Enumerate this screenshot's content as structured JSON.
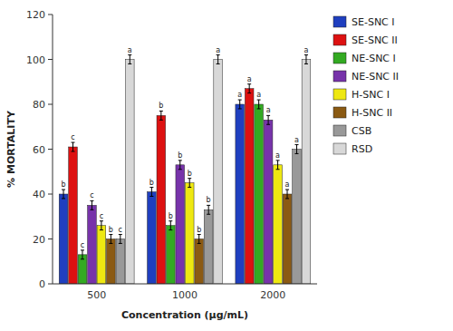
{
  "chart_data": {
    "type": "bar",
    "xlabel": "Concentration (μg/mL)",
    "ylabel": "% MORTALITY",
    "categories": [
      "500",
      "1000",
      "2000"
    ],
    "series": [
      {
        "name": "SE-SNC I",
        "color": "#1F3FBF",
        "values": [
          40,
          41,
          80
        ],
        "errors": [
          2,
          2,
          2
        ],
        "annotations": [
          "b",
          "b",
          "a"
        ]
      },
      {
        "name": "SE-SNC II",
        "color": "#DD1111",
        "values": [
          61,
          75,
          87
        ],
        "errors": [
          2,
          2,
          2
        ],
        "annotations": [
          "c",
          "b",
          "a"
        ]
      },
      {
        "name": "NE-SNC I",
        "color": "#33AA22",
        "values": [
          13,
          26,
          80
        ],
        "errors": [
          2,
          2,
          2
        ],
        "annotations": [
          "c",
          "b",
          "a"
        ]
      },
      {
        "name": "NE-SNC II",
        "color": "#7733AA",
        "values": [
          35,
          53,
          73
        ],
        "errors": [
          2,
          2,
          2
        ],
        "annotations": [
          "c",
          "b",
          "a"
        ]
      },
      {
        "name": "H-SNC I",
        "color": "#EEE811",
        "values": [
          26,
          45,
          53
        ],
        "errors": [
          2,
          2,
          2
        ],
        "annotations": [
          "c",
          "b",
          "a"
        ]
      },
      {
        "name": "H-SNC II",
        "color": "#8B5A13",
        "values": [
          20,
          20,
          40
        ],
        "errors": [
          2,
          2,
          2
        ],
        "annotations": [
          "b",
          "b",
          "a"
        ]
      },
      {
        "name": "CSB",
        "color": "#999999",
        "values": [
          20,
          33,
          60
        ],
        "errors": [
          2,
          2,
          2
        ],
        "annotations": [
          "c",
          "b",
          "a"
        ]
      },
      {
        "name": "RSD",
        "color": "#D8D8D8",
        "values": [
          100,
          100,
          100
        ],
        "errors": [
          2,
          2,
          2
        ],
        "annotations": [
          "a",
          "a",
          "a"
        ]
      }
    ],
    "ylim": [
      0,
      120
    ],
    "yticks": [
      0,
      20,
      40,
      60,
      80,
      100,
      120
    ],
    "grid": false,
    "legend": "right"
  }
}
